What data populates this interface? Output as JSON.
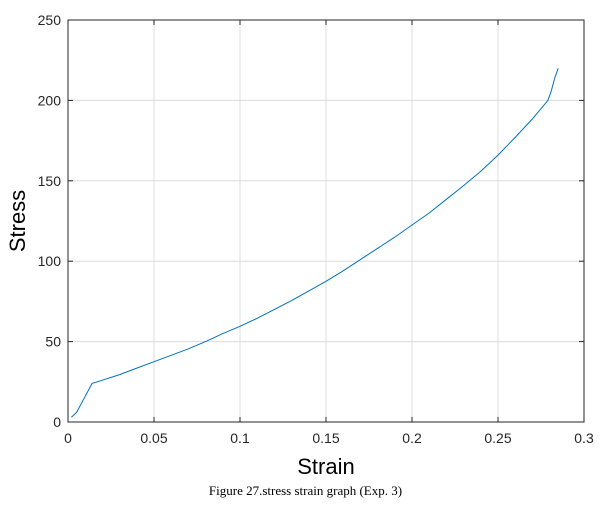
{
  "chart_data": {
    "type": "line",
    "xlabel": "Strain",
    "ylabel": "Stress",
    "xlim": [
      0,
      0.3
    ],
    "ylim": [
      0,
      250
    ],
    "xticks": [
      0,
      0.05,
      0.1,
      0.15,
      0.2,
      0.25,
      0.3
    ],
    "xtick_labels": [
      "0",
      "0.05",
      "0.1",
      "0.15",
      "0.2",
      "0.25",
      "0.3"
    ],
    "yticks": [
      0,
      50,
      100,
      150,
      200,
      250
    ],
    "ytick_labels": [
      "0",
      "50",
      "100",
      "150",
      "200",
      "250"
    ],
    "grid": true,
    "series": [
      {
        "color": "#0072BD",
        "x": [
          0.002,
          0.005,
          0.008,
          0.011,
          0.014,
          0.017,
          0.02,
          0.03,
          0.04,
          0.05,
          0.06,
          0.07,
          0.08,
          0.09,
          0.1,
          0.11,
          0.12,
          0.13,
          0.14,
          0.15,
          0.16,
          0.17,
          0.18,
          0.19,
          0.2,
          0.21,
          0.22,
          0.23,
          0.24,
          0.25,
          0.26,
          0.27,
          0.279,
          0.281,
          0.283,
          0.285
        ],
        "y": [
          3,
          6,
          12,
          18,
          24,
          25,
          26,
          29.5,
          33.5,
          37.5,
          41.5,
          45.5,
          50,
          55,
          59.5,
          64.5,
          70,
          75.5,
          81.5,
          87.5,
          94,
          101,
          108,
          115,
          122.5,
          130,
          138.5,
          147,
          156,
          166,
          177,
          188.5,
          200,
          206,
          214,
          220
        ]
      }
    ]
  },
  "caption": "Figure 27.stress strain graph (Exp. 3)"
}
